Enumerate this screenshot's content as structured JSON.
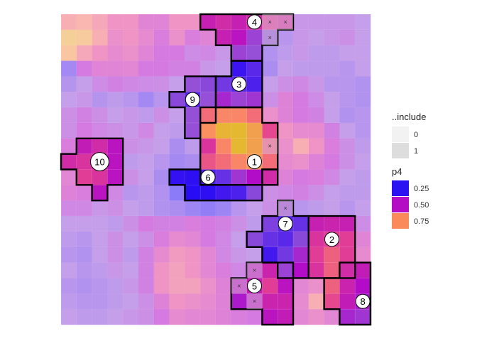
{
  "chart_data": {
    "type": "heatmap",
    "title": "",
    "xlabel": "",
    "ylabel": "",
    "grid": {
      "cols": 20,
      "rows": 20
    },
    "legend": {
      "include": {
        "title": "..include",
        "entries": [
          {
            "label": "0",
            "color": "#f2f2f2"
          },
          {
            "label": "1",
            "color": "#dddddd"
          }
        ]
      },
      "p4": {
        "title": "p4",
        "entries": [
          {
            "label": "0.25",
            "color": "#2a12f2"
          },
          {
            "label": "0.50",
            "color": "#b30cc4"
          },
          {
            "label": "0.75",
            "color": "#fb8a5b"
          }
        ]
      }
    },
    "cells": [
      [
        0.7,
        0.72,
        0.68,
        0.62,
        0.62,
        0.55,
        0.55,
        0.62,
        0.62,
        0.55,
        0.58,
        0.55,
        0.58,
        0.6,
        0.58,
        0.42,
        0.42,
        0.42,
        0.42,
        0.4
      ],
      [
        0.82,
        0.8,
        0.7,
        0.6,
        0.62,
        0.58,
        0.52,
        0.6,
        0.52,
        0.55,
        0.55,
        0.52,
        0.42,
        0.4,
        0.36,
        0.42,
        0.4,
        0.42,
        0.44,
        0.4
      ],
      [
        0.78,
        0.68,
        0.62,
        0.58,
        0.6,
        0.55,
        0.5,
        0.5,
        0.45,
        0.46,
        0.42,
        0.42,
        0.4,
        0.34,
        0.38,
        0.42,
        0.38,
        0.38,
        0.4,
        0.4
      ],
      [
        0.3,
        0.5,
        0.55,
        0.55,
        0.56,
        0.5,
        0.5,
        0.48,
        0.48,
        0.42,
        0.4,
        0.25,
        0.3,
        0.32,
        0.4,
        0.38,
        0.38,
        0.38,
        0.36,
        0.4
      ],
      [
        0.35,
        0.4,
        0.45,
        0.48,
        0.46,
        0.45,
        0.44,
        0.4,
        0.4,
        0.38,
        0.34,
        0.3,
        0.28,
        0.4,
        0.44,
        0.46,
        0.42,
        0.36,
        0.36,
        0.34
      ],
      [
        0.4,
        0.42,
        0.35,
        0.38,
        0.36,
        0.3,
        0.36,
        0.38,
        0.3,
        0.4,
        0.46,
        0.42,
        0.44,
        0.44,
        0.54,
        0.5,
        0.45,
        0.4,
        0.36,
        0.34
      ],
      [
        0.44,
        0.48,
        0.44,
        0.4,
        0.42,
        0.38,
        0.44,
        0.4,
        0.4,
        0.7,
        0.74,
        0.74,
        0.7,
        0.6,
        0.54,
        0.5,
        0.48,
        0.4,
        0.34,
        0.36
      ],
      [
        0.44,
        0.5,
        0.46,
        0.44,
        0.42,
        0.46,
        0.4,
        0.38,
        0.4,
        0.76,
        0.85,
        0.86,
        0.8,
        0.64,
        0.62,
        0.58,
        0.58,
        0.48,
        0.4,
        0.36
      ],
      [
        0.52,
        0.54,
        0.58,
        0.52,
        0.44,
        0.42,
        0.4,
        0.32,
        0.38,
        0.6,
        0.74,
        0.86,
        0.8,
        0.66,
        0.6,
        0.7,
        0.62,
        0.52,
        0.44,
        0.38
      ],
      [
        0.58,
        0.6,
        0.58,
        0.52,
        0.38,
        0.4,
        0.36,
        0.3,
        0.32,
        0.66,
        0.7,
        0.74,
        0.78,
        0.7,
        0.58,
        0.6,
        0.54,
        0.5,
        0.44,
        0.4
      ],
      [
        0.56,
        0.62,
        0.6,
        0.52,
        0.44,
        0.4,
        0.32,
        0.22,
        0.2,
        0.28,
        0.32,
        0.44,
        0.5,
        0.58,
        0.54,
        0.5,
        0.52,
        0.46,
        0.4,
        0.38
      ],
      [
        0.54,
        0.52,
        0.52,
        0.46,
        0.36,
        0.38,
        0.34,
        0.2,
        0.18,
        0.2,
        0.26,
        0.28,
        0.38,
        0.44,
        0.46,
        0.48,
        0.44,
        0.4,
        0.38,
        0.38
      ],
      [
        0.46,
        0.46,
        0.42,
        0.44,
        0.4,
        0.38,
        0.34,
        0.32,
        0.28,
        0.24,
        0.28,
        0.36,
        0.4,
        0.44,
        0.42,
        0.36,
        0.38,
        0.4,
        0.36,
        0.4
      ],
      [
        0.4,
        0.4,
        0.4,
        0.38,
        0.44,
        0.5,
        0.48,
        0.48,
        0.52,
        0.5,
        0.48,
        0.44,
        0.38,
        0.36,
        0.3,
        0.32,
        0.55,
        0.56,
        0.55,
        0.45
      ],
      [
        0.38,
        0.36,
        0.4,
        0.44,
        0.4,
        0.44,
        0.52,
        0.58,
        0.56,
        0.5,
        0.46,
        0.4,
        0.38,
        0.32,
        0.3,
        0.38,
        0.6,
        0.62,
        0.62,
        0.55
      ],
      [
        0.36,
        0.34,
        0.4,
        0.44,
        0.38,
        0.48,
        0.58,
        0.64,
        0.62,
        0.56,
        0.46,
        0.42,
        0.4,
        0.26,
        0.34,
        0.46,
        0.62,
        0.68,
        0.62,
        0.58
      ],
      [
        0.4,
        0.36,
        0.38,
        0.42,
        0.4,
        0.48,
        0.62,
        0.66,
        0.62,
        0.56,
        0.52,
        0.46,
        0.52,
        0.56,
        0.42,
        0.5,
        0.6,
        0.68,
        0.58,
        0.54
      ],
      [
        0.36,
        0.34,
        0.36,
        0.38,
        0.42,
        0.48,
        0.62,
        0.66,
        0.66,
        0.6,
        0.54,
        0.52,
        0.54,
        0.62,
        0.52,
        0.56,
        0.6,
        0.68,
        0.56,
        0.5
      ],
      [
        0.38,
        0.36,
        0.36,
        0.38,
        0.4,
        0.44,
        0.54,
        0.62,
        0.6,
        0.58,
        0.54,
        0.48,
        0.52,
        0.56,
        0.56,
        0.58,
        0.7,
        0.64,
        0.54,
        0.48
      ],
      [
        0.4,
        0.38,
        0.38,
        0.4,
        0.42,
        0.44,
        0.5,
        0.58,
        0.56,
        0.56,
        0.54,
        0.52,
        0.5,
        0.52,
        0.54,
        0.56,
        0.6,
        0.56,
        0.46,
        0.44
      ]
    ],
    "regions": [
      {
        "id": "1",
        "label": "1",
        "cells": [
          [
            8,
            9
          ],
          [
            8,
            10
          ],
          [
            8,
            11
          ],
          [
            8,
            12
          ],
          [
            8,
            13
          ],
          [
            9,
            9
          ],
          [
            9,
            10
          ],
          [
            9,
            11
          ],
          [
            9,
            12
          ],
          [
            9,
            13
          ],
          [
            10,
            9
          ],
          [
            10,
            10
          ],
          [
            10,
            11
          ],
          [
            10,
            12
          ],
          [
            7,
            9
          ],
          [
            7,
            10
          ],
          [
            7,
            11
          ],
          [
            7,
            12
          ],
          [
            7,
            13
          ],
          [
            6,
            9
          ],
          [
            6,
            10
          ],
          [
            6,
            11
          ],
          [
            6,
            12
          ]
        ],
        "label_cell": [
          9,
          12
        ]
      },
      {
        "id": "2",
        "label": "2",
        "cells": [
          [
            13,
            16
          ],
          [
            13,
            17
          ],
          [
            14,
            16
          ],
          [
            14,
            17
          ],
          [
            14,
            18
          ],
          [
            15,
            16
          ],
          [
            15,
            17
          ],
          [
            15,
            18
          ],
          [
            16,
            16
          ],
          [
            16,
            17
          ],
          [
            16,
            18
          ],
          [
            13,
            18
          ]
        ],
        "label_cell": [
          14,
          17
        ]
      },
      {
        "id": "3",
        "label": "3",
        "cells": [
          [
            3,
            11
          ],
          [
            3,
            12
          ],
          [
            4,
            11
          ],
          [
            4,
            12
          ],
          [
            5,
            10
          ],
          [
            5,
            11
          ],
          [
            5,
            12
          ],
          [
            4,
            10
          ]
        ],
        "label_cell": [
          4,
          11
        ]
      },
      {
        "id": "4",
        "label": "4",
        "cells": [
          [
            0,
            9
          ],
          [
            0,
            10
          ],
          [
            0,
            11
          ],
          [
            0,
            12
          ],
          [
            0,
            13
          ],
          [
            0,
            14
          ],
          [
            1,
            11
          ],
          [
            1,
            12
          ],
          [
            1,
            13
          ],
          [
            2,
            11
          ],
          [
            2,
            12
          ],
          [
            1,
            10
          ]
        ],
        "label_cell": [
          0,
          12
        ]
      },
      {
        "id": "5",
        "label": "5",
        "cells": [
          [
            16,
            12
          ],
          [
            16,
            13
          ],
          [
            16,
            14
          ],
          [
            17,
            12
          ],
          [
            17,
            13
          ],
          [
            17,
            14
          ],
          [
            18,
            12
          ],
          [
            18,
            13
          ],
          [
            18,
            14
          ],
          [
            19,
            13
          ],
          [
            19,
            14
          ],
          [
            17,
            11
          ],
          [
            18,
            11
          ]
        ],
        "label_cell": [
          17,
          12
        ]
      },
      {
        "id": "6",
        "label": "6",
        "cells": [
          [
            10,
            7
          ],
          [
            10,
            8
          ],
          [
            11,
            8
          ],
          [
            11,
            9
          ],
          [
            11,
            10
          ],
          [
            11,
            11
          ],
          [
            11,
            12
          ],
          [
            10,
            13
          ]
        ],
        "label_cell": [
          10,
          9
        ]
      },
      {
        "id": "7",
        "label": "7",
        "cells": [
          [
            12,
            14
          ],
          [
            13,
            13
          ],
          [
            13,
            14
          ],
          [
            13,
            15
          ],
          [
            14,
            12
          ],
          [
            14,
            13
          ],
          [
            14,
            14
          ],
          [
            14,
            15
          ],
          [
            15,
            13
          ],
          [
            15,
            14
          ],
          [
            15,
            15
          ],
          [
            16,
            14
          ],
          [
            16,
            15
          ]
        ],
        "label_cell": [
          13,
          14
        ]
      },
      {
        "id": "8",
        "label": "8",
        "cells": [
          [
            16,
            18
          ],
          [
            16,
            19
          ],
          [
            17,
            17
          ],
          [
            17,
            18
          ],
          [
            17,
            19
          ],
          [
            18,
            17
          ],
          [
            18,
            18
          ],
          [
            18,
            19
          ],
          [
            19,
            18
          ],
          [
            19,
            19
          ]
        ],
        "label_cell": [
          18,
          19
        ]
      },
      {
        "id": "9",
        "label": "9",
        "cells": [
          [
            4,
            8
          ],
          [
            4,
            9
          ],
          [
            5,
            8
          ],
          [
            5,
            9
          ],
          [
            6,
            8
          ],
          [
            7,
            8
          ],
          [
            5,
            7
          ],
          [
            6,
            9
          ]
        ],
        "label_cell": [
          5,
          8
        ]
      },
      {
        "id": "10",
        "label": "10",
        "cells": [
          [
            8,
            1
          ],
          [
            8,
            2
          ],
          [
            8,
            3
          ],
          [
            9,
            1
          ],
          [
            9,
            2
          ],
          [
            9,
            3
          ],
          [
            10,
            1
          ],
          [
            10,
            2
          ],
          [
            10,
            3
          ],
          [
            11,
            2
          ],
          [
            9,
            0
          ]
        ],
        "label_cell": [
          9,
          2
        ]
      }
    ],
    "include_markers": [
      [
        0,
        13
      ],
      [
        0,
        14
      ],
      [
        1,
        13
      ],
      [
        8,
        13
      ],
      [
        12,
        14
      ],
      [
        16,
        12
      ],
      [
        17,
        11
      ],
      [
        18,
        12
      ]
    ]
  }
}
